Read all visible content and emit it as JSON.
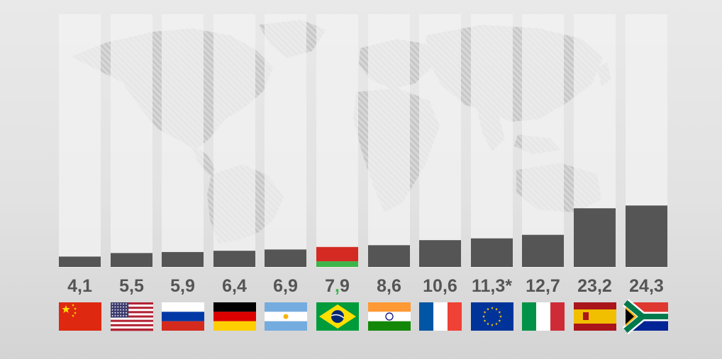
{
  "chart_data": {
    "type": "bar",
    "title": "",
    "xlabel": "",
    "ylabel": "",
    "ylim": [
      0,
      100
    ],
    "grid": false,
    "legend": "none",
    "categories": [
      "China",
      "United States",
      "Russia",
      "Germany",
      "Argentina",
      "Brazil",
      "India",
      "France",
      "European Union",
      "Italy",
      "Spain",
      "South Africa"
    ],
    "values": [
      4.1,
      5.5,
      5.9,
      6.4,
      6.9,
      7.9,
      8.6,
      10.6,
      11.3,
      12.7,
      23.2,
      24.3
    ],
    "value_labels": [
      "4,1",
      "5,5",
      "5,9",
      "6,4",
      "6,9",
      "7,9",
      "8,6",
      "10,6",
      "11,3*",
      "12,7",
      "23,2",
      "24,3"
    ],
    "highlight_index": 5,
    "flags": [
      "china-flag-icon",
      "usa-flag-icon",
      "russia-flag-icon",
      "germany-flag-icon",
      "argentina-flag-icon",
      "brazil-flag-icon",
      "india-flag-icon",
      "france-flag-icon",
      "eu-flag-icon",
      "italy-flag-icon",
      "spain-flag-icon",
      "south-africa-flag-icon"
    ],
    "colors": {
      "bar": "#555555",
      "track": "#f2f2f2",
      "highlight_top": "#d42a22",
      "highlight_bottom": "#3db54a",
      "label": "#555555",
      "highlight_separator": "#3db54a"
    }
  }
}
